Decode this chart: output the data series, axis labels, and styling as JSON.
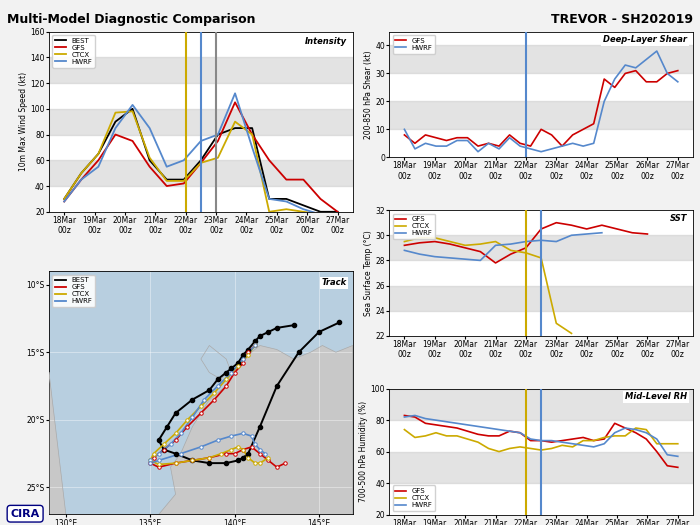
{
  "title_left": "Multi-Model Diagnostic Comparison",
  "title_right": "TREVOR - SH202019",
  "x_labels": [
    "18Mar\n00z",
    "19Mar\n00z",
    "20Mar\n00z",
    "21Mar\n00z",
    "22Mar\n00z",
    "23Mar\n00z",
    "24Mar\n00z",
    "25Mar\n00z",
    "26Mar\n00z",
    "27Mar\n00z"
  ],
  "colors": {
    "BEST": "#000000",
    "GFS": "#cc0000",
    "CTCX": "#ccaa00",
    "HWRF": "#5588cc"
  },
  "intensity": {
    "ylim": [
      20,
      160
    ],
    "yticks": [
      20,
      40,
      60,
      80,
      100,
      120,
      140,
      160
    ],
    "ylabel": "10m Max Wind Speed (kt)",
    "BEST": [
      30,
      50,
      65,
      90,
      100,
      60,
      45,
      45,
      60,
      80,
      85,
      85,
      30,
      30,
      25,
      20,
      20
    ],
    "GFS": [
      28,
      45,
      60,
      80,
      75,
      55,
      40,
      42,
      58,
      75,
      105,
      80,
      60,
      45,
      45,
      30,
      20
    ],
    "CTCX": [
      30,
      50,
      65,
      97,
      98,
      62,
      44,
      44,
      58,
      62,
      90,
      80,
      20,
      22,
      20,
      18,
      18
    ],
    "HWRF": [
      28,
      45,
      55,
      85,
      103,
      85,
      55,
      60,
      75,
      80,
      112,
      70,
      30,
      28,
      22,
      18,
      18
    ],
    "vline_yellow": 4.0,
    "vline_blue": 4.5,
    "vline_gray": 5.0
  },
  "shear": {
    "ylim": [
      0,
      45
    ],
    "yticks": [
      0,
      10,
      20,
      30,
      40
    ],
    "ylabel": "200-850 hPa Shear (kt)",
    "GFS": [
      8,
      5,
      8,
      7,
      6,
      7,
      7,
      4,
      5,
      4,
      8,
      5,
      4,
      10,
      8,
      4,
      8,
      10,
      12,
      28,
      25,
      30,
      31,
      27,
      27,
      30,
      31
    ],
    "HWRF": [
      10,
      3,
      5,
      4,
      4,
      6,
      6,
      2,
      5,
      3,
      7,
      4,
      3,
      2,
      3,
      4,
      5,
      4,
      5,
      20,
      28,
      33,
      32,
      35,
      38,
      30,
      27
    ],
    "vline_blue": 4.0
  },
  "sst": {
    "ylim": [
      22,
      32
    ],
    "yticks": [
      22,
      24,
      26,
      28,
      30,
      32
    ],
    "ylabel": "Sea Surface Temp (°C)",
    "GFS_x": [
      0,
      0.5,
      1.0,
      1.5,
      2.0,
      2.5,
      3.0,
      3.5,
      4.0,
      4.5,
      5.0,
      5.5,
      6.0,
      6.5,
      7.0,
      7.5,
      8.0
    ],
    "GFS_y": [
      29.2,
      29.4,
      29.5,
      29.3,
      29.0,
      28.7,
      27.8,
      28.5,
      29.0,
      30.5,
      31.0,
      30.8,
      30.5,
      30.8,
      30.5,
      30.2,
      30.1
    ],
    "CTCX_x": [
      0,
      0.5,
      1.0,
      1.5,
      2.0,
      2.5,
      3.0,
      3.5,
      4.0,
      4.5,
      5.0,
      5.5
    ],
    "CTCX_y": [
      29.5,
      29.8,
      29.8,
      29.5,
      29.2,
      29.3,
      29.5,
      28.8,
      28.6,
      28.2,
      23.0,
      22.2
    ],
    "HWRF_x": [
      0,
      0.5,
      1.0,
      1.5,
      2.0,
      2.5,
      3.0,
      3.5,
      4.0,
      4.5,
      5.0,
      5.5,
      6.0,
      6.5
    ],
    "HWRF_y": [
      28.8,
      28.5,
      28.3,
      28.2,
      28.1,
      28.0,
      29.2,
      29.3,
      29.5,
      29.6,
      29.5,
      30.0,
      30.1,
      30.2
    ],
    "vline_yellow": 4.0,
    "vline_blue": 4.5
  },
  "rh": {
    "ylim": [
      20,
      100
    ],
    "yticks": [
      20,
      40,
      60,
      80,
      100
    ],
    "ylabel": "700-500 hPa Humidity (%)",
    "GFS": [
      83,
      82,
      78,
      77,
      76,
      75,
      73,
      71,
      70,
      70,
      73,
      72,
      67,
      67,
      66,
      67,
      68,
      69,
      67,
      68,
      78,
      75,
      72,
      68,
      60,
      51,
      50
    ],
    "CTCX": [
      74,
      69,
      70,
      72,
      70,
      70,
      68,
      66,
      62,
      60,
      62,
      63,
      62,
      61,
      62,
      64,
      63,
      67,
      67,
      69,
      70,
      70,
      75,
      74,
      65,
      65,
      65
    ],
    "HWRF": [
      82,
      83,
      81,
      80,
      79,
      78,
      77,
      76,
      75,
      74,
      73,
      72,
      68,
      67,
      67,
      66,
      65,
      64,
      63,
      65,
      72,
      75,
      74,
      72,
      68,
      58,
      57
    ],
    "vline_yellow": 4.0,
    "vline_blue": 4.5
  },
  "track": {
    "lon_range": [
      129,
      147
    ],
    "lat_range": [
      -27,
      -9
    ],
    "land_color": "#c8c8c8",
    "ocean_color": "#b8cfe0",
    "BEST_lon": [
      143.5,
      142.5,
      142.0,
      141.5,
      141.2,
      140.8,
      140.5,
      140.2,
      139.8,
      139.5,
      139.0,
      138.5,
      137.5,
      136.5,
      136.0,
      135.5,
      135.8,
      136.5,
      137.5,
      138.5,
      139.5,
      140.2,
      140.5,
      140.8,
      141.5,
      142.5,
      143.8,
      145.0,
      146.2
    ],
    "BEST_lat": [
      -13.0,
      -13.2,
      -13.5,
      -13.8,
      -14.2,
      -14.8,
      -15.2,
      -15.8,
      -16.2,
      -16.5,
      -17.0,
      -17.8,
      -18.5,
      -19.5,
      -20.5,
      -21.5,
      -22.2,
      -22.5,
      -23.0,
      -23.2,
      -23.2,
      -23.0,
      -22.8,
      -22.5,
      -20.5,
      -17.5,
      -15.0,
      -13.5,
      -12.8
    ],
    "GFS_lon": [
      141.2,
      140.8,
      140.5,
      140.0,
      139.5,
      138.8,
      138.0,
      137.2,
      136.5,
      135.8,
      135.2,
      135.0,
      135.5,
      136.5,
      137.5,
      138.5,
      139.5,
      140.0,
      140.5,
      141.0,
      141.5,
      142.0,
      142.5,
      143.0
    ],
    "GFS_lat": [
      -14.5,
      -15.0,
      -15.8,
      -16.5,
      -17.5,
      -18.5,
      -19.5,
      -20.5,
      -21.5,
      -22.2,
      -22.8,
      -23.2,
      -23.5,
      -23.2,
      -23.0,
      -22.8,
      -22.5,
      -22.5,
      -22.2,
      -22.0,
      -22.5,
      -23.0,
      -23.5,
      -23.2
    ],
    "CTCX_lon": [
      141.2,
      140.8,
      140.2,
      139.5,
      138.8,
      138.0,
      137.2,
      136.5,
      135.8,
      135.2,
      135.0,
      135.5,
      136.5,
      137.5,
      138.5,
      139.2,
      139.8,
      140.2,
      140.5,
      140.8,
      141.2,
      141.5,
      142.0
    ],
    "CTCX_lat": [
      -14.5,
      -15.2,
      -16.0,
      -17.0,
      -18.0,
      -19.0,
      -20.0,
      -21.0,
      -21.8,
      -22.5,
      -23.0,
      -23.3,
      -23.2,
      -23.0,
      -22.8,
      -22.5,
      -22.2,
      -22.0,
      -22.2,
      -22.8,
      -23.2,
      -23.2,
      -22.8
    ],
    "HWRF_lon": [
      141.2,
      140.5,
      139.8,
      139.0,
      138.2,
      137.5,
      136.8,
      136.2,
      135.5,
      135.0,
      135.0,
      135.5,
      136.8,
      138.0,
      139.0,
      139.8,
      140.5,
      141.0,
      141.2,
      141.5,
      141.8
    ],
    "HWRF_lat": [
      -14.5,
      -15.5,
      -16.5,
      -17.5,
      -18.5,
      -19.8,
      -21.0,
      -21.8,
      -22.5,
      -23.0,
      -23.2,
      -23.0,
      -22.5,
      -22.0,
      -21.5,
      -21.2,
      -21.0,
      -21.2,
      -21.8,
      -22.2,
      -22.5
    ]
  }
}
